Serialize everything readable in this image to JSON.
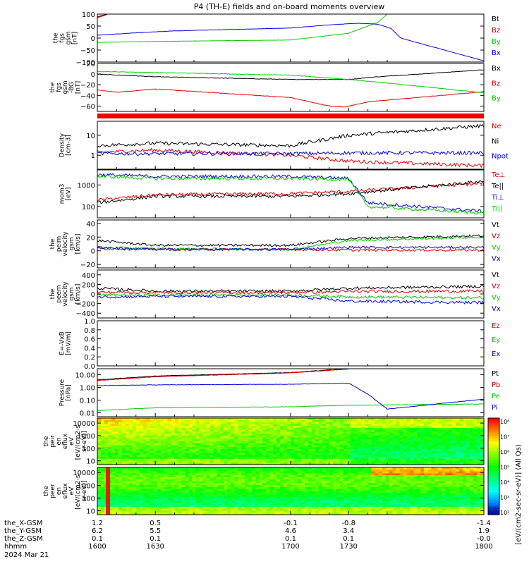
{
  "title": "P4 (TH-E) fields and on-board moments overview",
  "footer": {
    "rows": [
      {
        "label": "the_X-GSM",
        "values": [
          "1.2",
          "0.5",
          "-0.1",
          "-0.8",
          "-1.4"
        ]
      },
      {
        "label": "the_Y-GSM",
        "values": [
          "6.2",
          "5.5",
          "4.6",
          "3.4",
          "1.9"
        ]
      },
      {
        "label": "the_Z-GSM",
        "values": [
          "0.1",
          "0.1",
          "0.1",
          "0.1",
          "-0.0"
        ]
      },
      {
        "label": "hhmm",
        "values": [
          "1600",
          "1630",
          "1700",
          "1730",
          "1800"
        ]
      }
    ],
    "date": "2024 Mar 21"
  },
  "colorbar_label": "[eV/(cm2-sec-sr-eV)] (All Qs)",
  "colorbar_ticks": [
    "10⁸",
    "10⁷",
    "10⁶",
    "10⁵",
    "10⁴",
    "10³",
    "10²"
  ],
  "colors": {
    "black": "#000000",
    "red": "#dd0000",
    "green": "#00cc00",
    "blue": "#0000dd"
  },
  "chart_data": [
    {
      "type": "line",
      "ylabel_lines": [
        "the",
        "fgs",
        "gsm",
        "[nT]"
      ],
      "ylim": [
        -100,
        100
      ],
      "yticks": [
        "100",
        "50",
        "0",
        "−50",
        "−100"
      ],
      "series": [
        {
          "name": "Bt",
          "color": "black",
          "x": [
            1600,
            1605
          ],
          "y": [
            88,
            100
          ]
        },
        {
          "name": "Bz",
          "color": "red",
          "x": [
            1600,
            1605
          ],
          "y": [
            85,
            98
          ]
        },
        {
          "name": "By",
          "color": "green",
          "x": [
            1600,
            1630,
            1700,
            1730,
            1745,
            1750
          ],
          "y": [
            -18,
            -14,
            -8,
            20,
            65,
            100
          ]
        },
        {
          "name": "Bx",
          "color": "blue",
          "x": [
            1600,
            1620,
            1640,
            1700,
            1720,
            1735,
            1745,
            1752,
            1757,
            1800
          ],
          "y": [
            12,
            22,
            30,
            42,
            55,
            62,
            58,
            40,
            0,
            -95
          ]
        }
      ]
    },
    {
      "type": "line",
      "ylabel_lines": [
        "the",
        "fgs",
        "gsm",
        "-BG",
        "[nT]"
      ],
      "ylim": [
        -70,
        20
      ],
      "yticks": [
        "20",
        "0",
        "−20",
        "−40",
        "−60"
      ],
      "series": [
        {
          "name": "Bx",
          "color": "black",
          "x": [
            1600,
            1630,
            1700,
            1730,
            1745,
            1800
          ],
          "y": [
            0,
            -5,
            -10,
            -10,
            -5,
            8
          ]
        },
        {
          "name": "Bz",
          "color": "red",
          "x": [
            1600,
            1610,
            1630,
            1700,
            1720,
            1728,
            1740,
            1800
          ],
          "y": [
            -30,
            -34,
            -28,
            -44,
            -60,
            -62,
            -52,
            -33
          ]
        },
        {
          "name": "By",
          "color": "green",
          "x": [
            1600,
            1630,
            1700,
            1730,
            1745,
            1800
          ],
          "y": [
            5,
            3,
            -2,
            -10,
            -15,
            -35
          ]
        }
      ]
    },
    {
      "type": "line",
      "ylabel_lines": [
        "Density",
        "[cm-3]"
      ],
      "yscale": "log",
      "ylim": [
        0.2,
        50
      ],
      "yticks": [
        "10",
        "1"
      ],
      "series": [
        {
          "name": "Ne",
          "color": "red",
          "x": [
            1600,
            1630,
            1700,
            1730,
            1800
          ],
          "y": [
            1.4,
            1.8,
            1.0,
            0.5,
            0.3
          ]
        },
        {
          "name": "Ni",
          "color": "black",
          "x": [
            1600,
            1630,
            1700,
            1730,
            1800
          ],
          "y": [
            3,
            4,
            3,
            10,
            30
          ]
        },
        {
          "name": "Npot",
          "color": "blue",
          "x": [
            1600,
            1630,
            1700,
            1730,
            1800
          ],
          "y": [
            1.2,
            1.2,
            1.2,
            1.3,
            1.3
          ]
        }
      ]
    },
    {
      "type": "line",
      "ylabel_lines": [
        "mom3",
        "[eV]"
      ],
      "yscale": "log",
      "ylim": [
        30,
        5000
      ],
      "yticks": [
        "1000",
        "100"
      ],
      "series": [
        {
          "name": "Te⊥",
          "color": "red",
          "x": [
            1600,
            1630,
            1700,
            1730,
            1800
          ],
          "y": [
            200,
            350,
            400,
            500,
            1200
          ]
        },
        {
          "name": "Te||",
          "color": "black",
          "x": [
            1600,
            1630,
            1700,
            1730,
            1800
          ],
          "y": [
            150,
            300,
            300,
            400,
            1500
          ]
        },
        {
          "name": "Ti⊥",
          "color": "blue",
          "x": [
            1600,
            1630,
            1700,
            1730,
            1740,
            1800
          ],
          "y": [
            3000,
            2500,
            2500,
            2000,
            150,
            60
          ]
        },
        {
          "name": "Ti||",
          "color": "green",
          "x": [
            1600,
            1630,
            1700,
            1730,
            1740,
            1800
          ],
          "y": [
            2500,
            2000,
            2000,
            1800,
            100,
            50
          ]
        }
      ]
    },
    {
      "type": "line",
      "ylabel_lines": [
        "the",
        "peim",
        "velocity",
        "gsm",
        "[km/s]"
      ],
      "ylim": [
        -25,
        45
      ],
      "yticks": [
        "40",
        "20",
        "0",
        "−20"
      ],
      "series": [
        {
          "name": "Vt",
          "color": "black",
          "x": [
            1600,
            1630,
            1700,
            1730,
            1800
          ],
          "y": [
            15,
            8,
            8,
            18,
            22
          ]
        },
        {
          "name": "Vz",
          "color": "red",
          "x": [
            1600,
            1630,
            1700,
            1730,
            1800
          ],
          "y": [
            3,
            2,
            2,
            1,
            1
          ]
        },
        {
          "name": "Vy",
          "color": "green",
          "x": [
            1600,
            1630,
            1700,
            1730,
            1800
          ],
          "y": [
            5,
            3,
            2,
            15,
            20
          ]
        },
        {
          "name": "Vx",
          "color": "blue",
          "x": [
            1600,
            1630,
            1700,
            1730,
            1800
          ],
          "y": [
            5,
            2,
            2,
            5,
            5
          ]
        }
      ]
    },
    {
      "type": "line",
      "ylabel_lines": [
        "the",
        "peem",
        "velocity",
        "gsm",
        "[km/s]"
      ],
      "ylim": [
        -500,
        500
      ],
      "yticks": [
        "400",
        "200",
        "0",
        "−200",
        "−400"
      ],
      "series": [
        {
          "name": "Vt",
          "color": "black",
          "x": [
            1600,
            1630,
            1700,
            1730,
            1800
          ],
          "y": [
            120,
            60,
            60,
            120,
            160
          ]
        },
        {
          "name": "Vz",
          "color": "red",
          "x": [
            1600,
            1630,
            1700,
            1730,
            1800
          ],
          "y": [
            40,
            30,
            30,
            50,
            60
          ]
        },
        {
          "name": "Vy",
          "color": "green",
          "x": [
            1600,
            1630,
            1700,
            1730,
            1800
          ],
          "y": [
            -20,
            -20,
            -20,
            -60,
            -80
          ]
        },
        {
          "name": "Vx",
          "color": "blue",
          "x": [
            1600,
            1630,
            1700,
            1730,
            1800
          ],
          "y": [
            -60,
            -50,
            -50,
            -150,
            -180
          ]
        }
      ]
    },
    {
      "type": "line",
      "ylabel_lines": [
        "E=-VxB",
        "[mV/m]"
      ],
      "ylim": [
        0,
        1
      ],
      "yticks": [
        "1.0",
        "0.8",
        "0.6",
        "0.4",
        "0.2",
        "0.0"
      ],
      "series": [
        {
          "name": "Ez",
          "color": "red",
          "x": [],
          "y": []
        },
        {
          "name": "Ey",
          "color": "green",
          "x": [],
          "y": []
        },
        {
          "name": "Ex",
          "color": "blue",
          "x": [],
          "y": []
        }
      ]
    },
    {
      "type": "line",
      "ylabel_lines": [
        "Pressure",
        "[nPa]"
      ],
      "yscale": "log",
      "ylim": [
        0.005,
        30
      ],
      "yticks": [
        "10.00",
        "1.00",
        "0.10",
        "0.01"
      ],
      "series": [
        {
          "name": "Pt",
          "color": "black",
          "x": [
            1600,
            1630,
            1700,
            1730
          ],
          "y": [
            4,
            8,
            15,
            30
          ]
        },
        {
          "name": "Pb",
          "color": "red",
          "x": [
            1600,
            1630,
            1700,
            1730
          ],
          "y": [
            3.5,
            7,
            14,
            28
          ]
        },
        {
          "name": "Pe",
          "color": "green",
          "x": [
            1600,
            1630,
            1700,
            1730,
            1800
          ],
          "y": [
            0.015,
            0.025,
            0.03,
            0.04,
            0.05
          ]
        },
        {
          "name": "Pi",
          "color": "blue",
          "x": [
            1600,
            1630,
            1700,
            1730,
            1740,
            1750,
            1800
          ],
          "y": [
            1.4,
            1.6,
            1.8,
            2.2,
            0.3,
            0.02,
            0.12
          ]
        }
      ]
    },
    {
      "type": "heatmap",
      "ylabel_lines": [
        "the",
        "peir",
        "en",
        "eflux",
        "eV",
        "[eV/(cm2-s-",
        "sr-eV)]"
      ],
      "yscale": "log",
      "ylim": [
        5,
        25000
      ],
      "yticks": [
        "10000",
        "1000",
        "100",
        "10"
      ]
    },
    {
      "type": "heatmap",
      "ylabel_lines": [
        "the",
        "peer",
        "en",
        "eflux",
        "eV",
        "[eV/(cm2-s-",
        "sr-eV)]"
      ],
      "yscale": "log",
      "ylim": [
        5,
        25000
      ],
      "yticks": [
        "10000",
        "1000",
        "100",
        "10"
      ]
    }
  ]
}
